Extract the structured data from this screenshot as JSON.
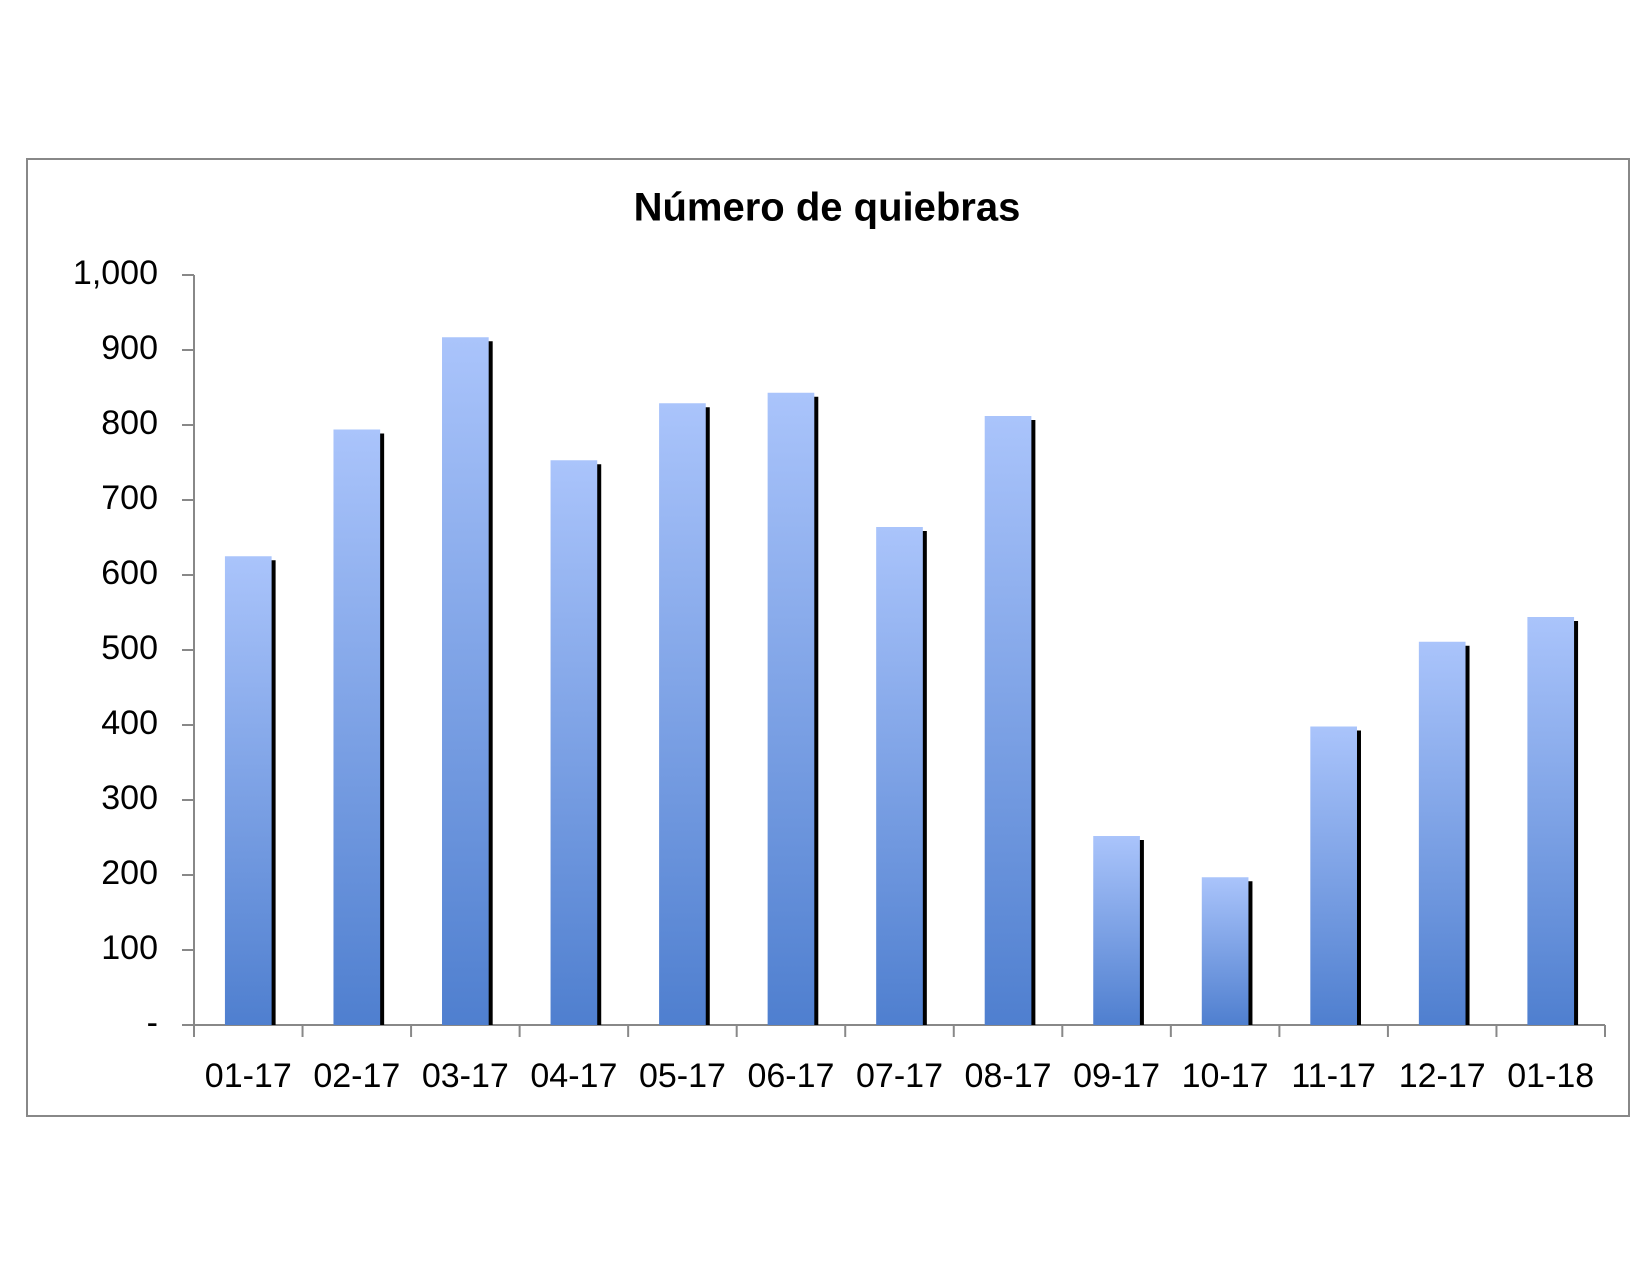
{
  "chart_data": {
    "type": "bar",
    "title": "Número de quiebras",
    "categories": [
      "01-17",
      "02-17",
      "03-17",
      "04-17",
      "05-17",
      "06-17",
      "07-17",
      "08-17",
      "09-17",
      "10-17",
      "11-17",
      "12-17",
      "01-18"
    ],
    "values": [
      625,
      794,
      917,
      753,
      829,
      843,
      664,
      812,
      252,
      197,
      398,
      511,
      544
    ],
    "color": "#4f7fcf",
    "ylim": [
      0,
      1000
    ],
    "yticks": [
      {
        "value": 0,
        "label": "-"
      },
      100,
      200,
      300,
      400,
      500,
      600,
      700,
      800,
      900,
      {
        "value": 1000,
        "label": "1,000"
      }
    ],
    "grid": false
  }
}
